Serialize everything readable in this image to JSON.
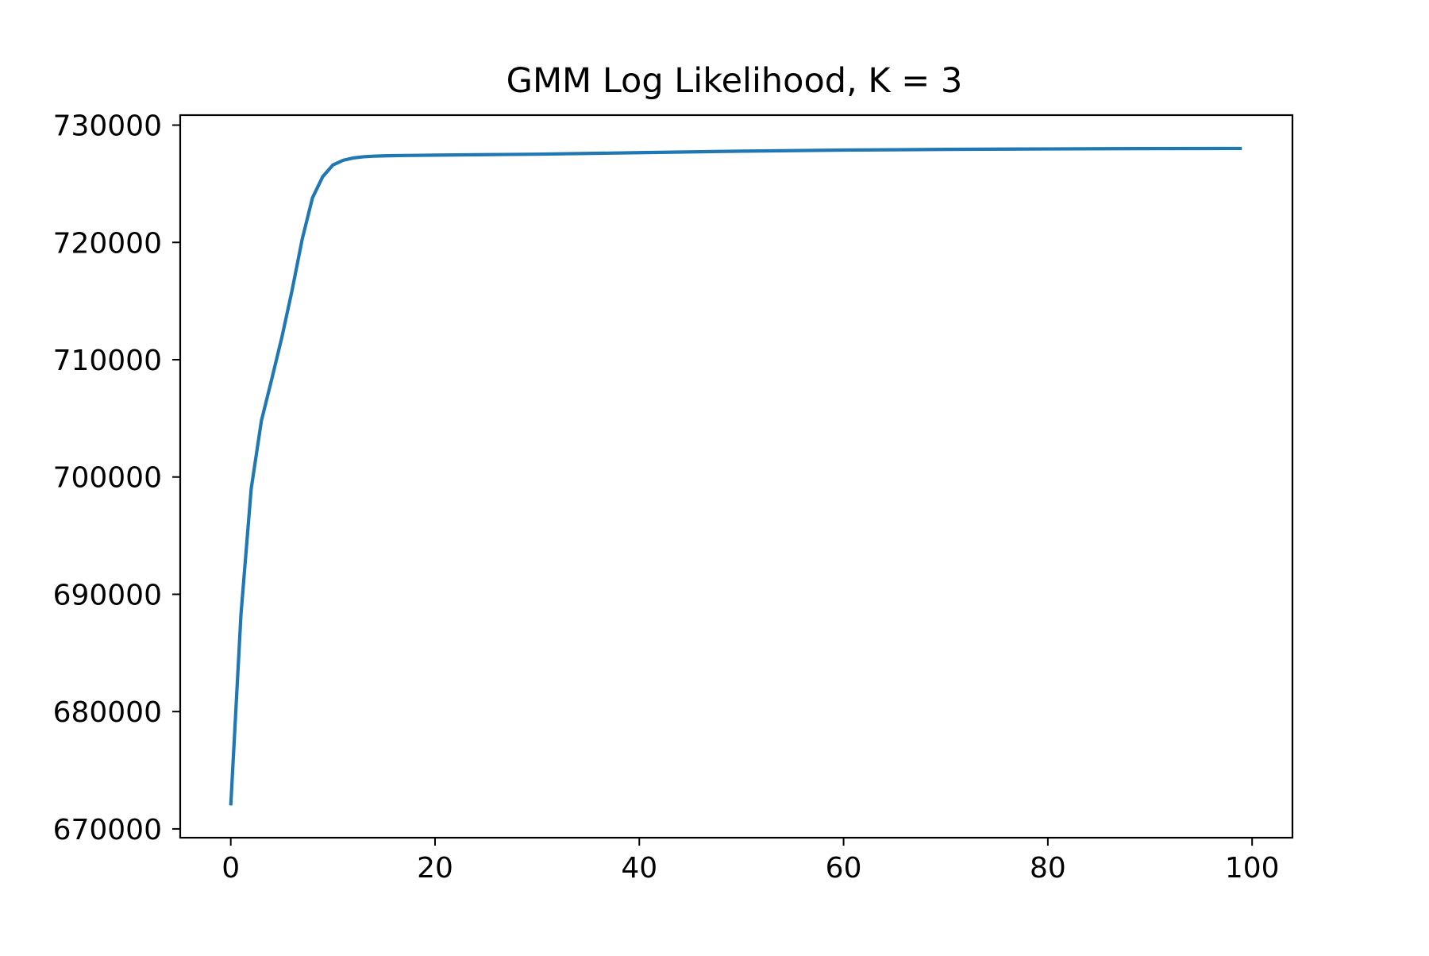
{
  "chart_data": {
    "type": "line",
    "title": "GMM Log Likelihood, K = 3",
    "xlabel": "",
    "ylabel": "",
    "xlim": [
      -4.95,
      103.95
    ],
    "ylim": [
      669250,
      730850
    ],
    "xticks": [
      0,
      20,
      40,
      60,
      80,
      100
    ],
    "xtick_labels": [
      "0",
      "20",
      "40",
      "60",
      "80",
      "100"
    ],
    "yticks": [
      670000,
      680000,
      690000,
      700000,
      710000,
      720000,
      730000
    ],
    "ytick_labels": [
      "670000",
      "680000",
      "690000",
      "700000",
      "710000",
      "720000",
      "730000"
    ],
    "grid": false,
    "legend": false,
    "series": [
      {
        "color": "#1f77b4",
        "x": [
          0,
          1,
          2,
          3,
          4,
          5,
          6,
          7,
          8,
          9,
          10,
          11,
          12,
          13,
          14,
          15,
          16,
          18,
          20,
          25,
          30,
          40,
          50,
          60,
          70,
          80,
          90,
          99
        ],
        "y": [
          672000,
          688300,
          699000,
          704800,
          708300,
          711900,
          715900,
          720300,
          723800,
          725600,
          726600,
          727000,
          727200,
          727300,
          727350,
          727380,
          727400,
          727420,
          727440,
          727480,
          727520,
          727650,
          727780,
          727870,
          727930,
          727970,
          728000,
          728010
        ]
      }
    ]
  }
}
